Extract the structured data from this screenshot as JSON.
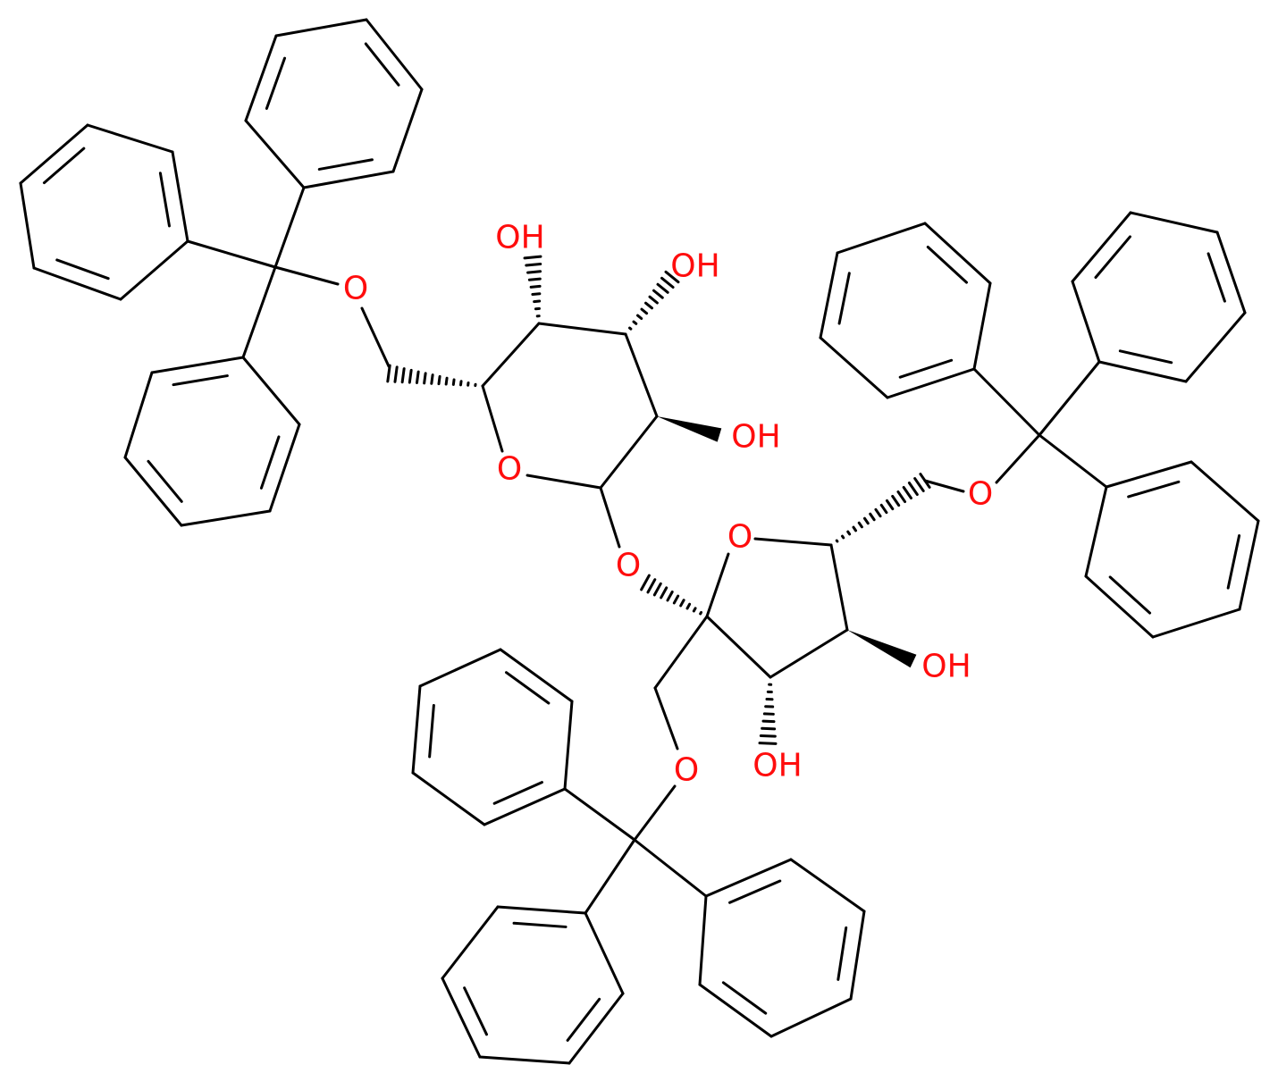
{
  "atoms": [
    "O",
    "OH",
    "OH",
    "OH",
    "O",
    "O",
    "O",
    "O",
    "OH",
    "OH",
    "O"
  ]
}
